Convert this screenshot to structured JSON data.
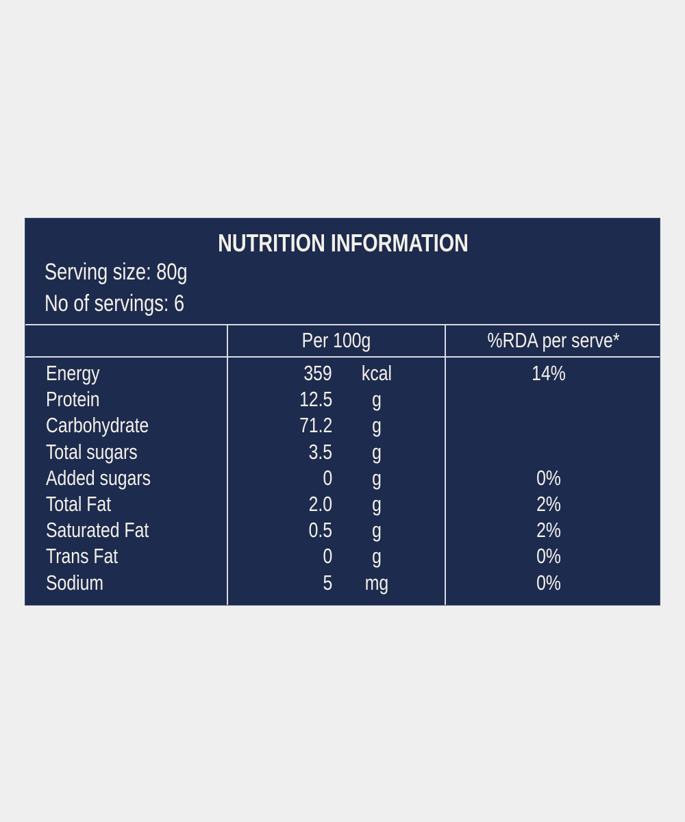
{
  "label": {
    "title": "NUTRITION INFORMATION",
    "serving_size": "Serving size: 80g",
    "servings": "No of servings: 6",
    "columns": [
      "",
      "Per 100g",
      "%RDA per serve*"
    ],
    "rows": [
      {
        "nutrient": "Energy",
        "value": "359",
        "unit": "kcal",
        "rda": "14%"
      },
      {
        "nutrient": "Protein",
        "value": "12.5",
        "unit": "g",
        "rda": ""
      },
      {
        "nutrient": "Carbohydrate",
        "value": "71.2",
        "unit": "g",
        "rda": ""
      },
      {
        "nutrient": "Total sugars",
        "value": "3.5",
        "unit": "g",
        "rda": ""
      },
      {
        "nutrient": "Added sugars",
        "value": "0",
        "unit": "g",
        "rda": "0%"
      },
      {
        "nutrient": "Total Fat",
        "value": "2.0",
        "unit": "g",
        "rda": "2%"
      },
      {
        "nutrient": "Saturated Fat",
        "value": "0.5",
        "unit": "g",
        "rda": "2%"
      },
      {
        "nutrient": "Trans Fat",
        "value": "0",
        "unit": "g",
        "rda": "0%"
      },
      {
        "nutrient": "Sodium",
        "value": "5",
        "unit": "mg",
        "rda": "0%"
      }
    ],
    "colors": {
      "panel": "#1d2b4e",
      "text": "#f4f1ea",
      "background": "#efefef"
    }
  }
}
